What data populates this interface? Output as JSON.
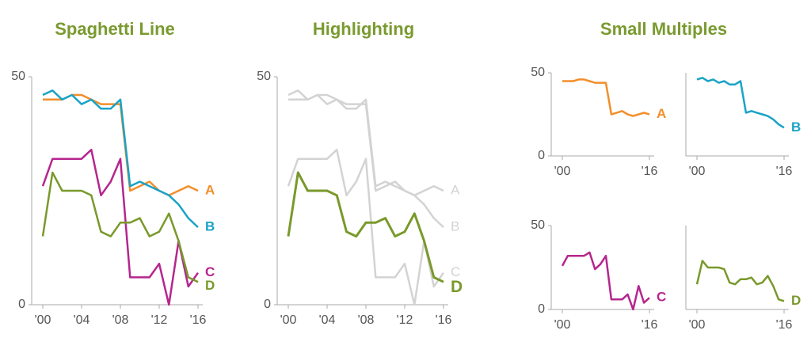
{
  "chart_data": [
    {
      "type": "line",
      "title": "Spaghetti Line",
      "x": [
        2000,
        2001,
        2002,
        2003,
        2004,
        2005,
        2006,
        2007,
        2008,
        2009,
        2010,
        2011,
        2012,
        2013,
        2014,
        2015,
        2016
      ],
      "xlim": [
        2000,
        2016
      ],
      "ylim": [
        0,
        50
      ],
      "xticks": [
        {
          "value": 2000,
          "label": "'00"
        },
        {
          "value": 2004,
          "label": "'04"
        },
        {
          "value": 2008,
          "label": "'08"
        },
        {
          "value": 2012,
          "label": "'12"
        },
        {
          "value": 2016,
          "label": "'16"
        }
      ],
      "yticks": [
        0,
        50
      ],
      "series": [
        {
          "name": "A",
          "color": "#f28e2b",
          "values": [
            45,
            45,
            45,
            46,
            46,
            45,
            44,
            44,
            44,
            25,
            26,
            27,
            25,
            24,
            25,
            26,
            25
          ]
        },
        {
          "name": "B",
          "color": "#1ba3c6",
          "values": [
            46,
            47,
            45,
            46,
            44,
            45,
            43,
            43,
            45,
            26,
            27,
            26,
            25,
            24,
            22,
            19,
            17
          ]
        },
        {
          "name": "C",
          "color": "#b5268e",
          "values": [
            26,
            32,
            32,
            32,
            32,
            34,
            24,
            27,
            32,
            6,
            6,
            6,
            9,
            0,
            14,
            4,
            7
          ]
        },
        {
          "name": "D",
          "color": "#79992b",
          "values": [
            15,
            29,
            25,
            25,
            25,
            24,
            16,
            15,
            18,
            18,
            19,
            15,
            16,
            20,
            14,
            6,
            5
          ]
        }
      ]
    },
    {
      "type": "line",
      "title": "Highlighting",
      "highlight": 3,
      "x": [
        2000,
        2001,
        2002,
        2003,
        2004,
        2005,
        2006,
        2007,
        2008,
        2009,
        2010,
        2011,
        2012,
        2013,
        2014,
        2015,
        2016
      ],
      "xlim": [
        2000,
        2016
      ],
      "ylim": [
        0,
        50
      ],
      "xticks": [
        {
          "value": 2000,
          "label": "'00"
        },
        {
          "value": 2004,
          "label": "'04"
        },
        {
          "value": 2008,
          "label": "'08"
        },
        {
          "value": 2012,
          "label": "'12"
        },
        {
          "value": 2016,
          "label": "'16"
        }
      ],
      "yticks": [
        0,
        50
      ],
      "series": [
        {
          "name": "A",
          "color": "#d3d3d3",
          "values": [
            45,
            45,
            45,
            46,
            46,
            45,
            44,
            44,
            44,
            25,
            26,
            27,
            25,
            24,
            25,
            26,
            25
          ]
        },
        {
          "name": "B",
          "color": "#d3d3d3",
          "values": [
            46,
            47,
            45,
            46,
            44,
            45,
            43,
            43,
            45,
            26,
            27,
            26,
            25,
            24,
            22,
            19,
            17
          ]
        },
        {
          "name": "C",
          "color": "#d3d3d3",
          "values": [
            26,
            32,
            32,
            32,
            32,
            34,
            24,
            27,
            32,
            6,
            6,
            6,
            9,
            0,
            14,
            4,
            7
          ]
        },
        {
          "name": "D",
          "color": "#79992b",
          "values": [
            15,
            29,
            25,
            25,
            25,
            24,
            16,
            15,
            18,
            18,
            19,
            15,
            16,
            20,
            14,
            6,
            5
          ]
        }
      ]
    },
    {
      "type": "small-multiples",
      "title": "Small Multiples",
      "x": [
        2000,
        2001,
        2002,
        2003,
        2004,
        2005,
        2006,
        2007,
        2008,
        2009,
        2010,
        2011,
        2012,
        2013,
        2014,
        2015,
        2016
      ],
      "xlim": [
        2000,
        2016
      ],
      "ylim": [
        0,
        50
      ],
      "panels": [
        {
          "name": "A",
          "color": "#f28e2b",
          "values": [
            45,
            45,
            45,
            46,
            46,
            45,
            44,
            44,
            44,
            25,
            26,
            27,
            25,
            24,
            25,
            26,
            25
          ],
          "xticks": [
            {
              "value": 2000,
              "label": "'00"
            },
            {
              "value": 2016,
              "label": "'16"
            }
          ],
          "yticks": [
            0,
            50
          ]
        },
        {
          "name": "B",
          "color": "#1ba3c6",
          "values": [
            46,
            47,
            45,
            46,
            44,
            45,
            43,
            43,
            45,
            26,
            27,
            26,
            25,
            24,
            22,
            19,
            17
          ],
          "xticks": [
            {
              "value": 2000,
              "label": "'00"
            },
            {
              "value": 2016,
              "label": "'16"
            }
          ]
        },
        {
          "name": "C",
          "color": "#b5268e",
          "values": [
            26,
            32,
            32,
            32,
            32,
            34,
            24,
            27,
            32,
            6,
            6,
            6,
            9,
            0,
            14,
            4,
            7
          ],
          "xticks": [
            {
              "value": 2000,
              "label": "'00"
            },
            {
              "value": 2016,
              "label": "'16"
            }
          ],
          "yticks": [
            0,
            50
          ]
        },
        {
          "name": "D",
          "color": "#79992b",
          "values": [
            15,
            29,
            25,
            25,
            25,
            24,
            16,
            15,
            18,
            18,
            19,
            15,
            16,
            20,
            14,
            6,
            5
          ],
          "xticks": [
            {
              "value": 2000,
              "label": "'00"
            },
            {
              "value": 2016,
              "label": "'16"
            }
          ]
        }
      ]
    }
  ]
}
